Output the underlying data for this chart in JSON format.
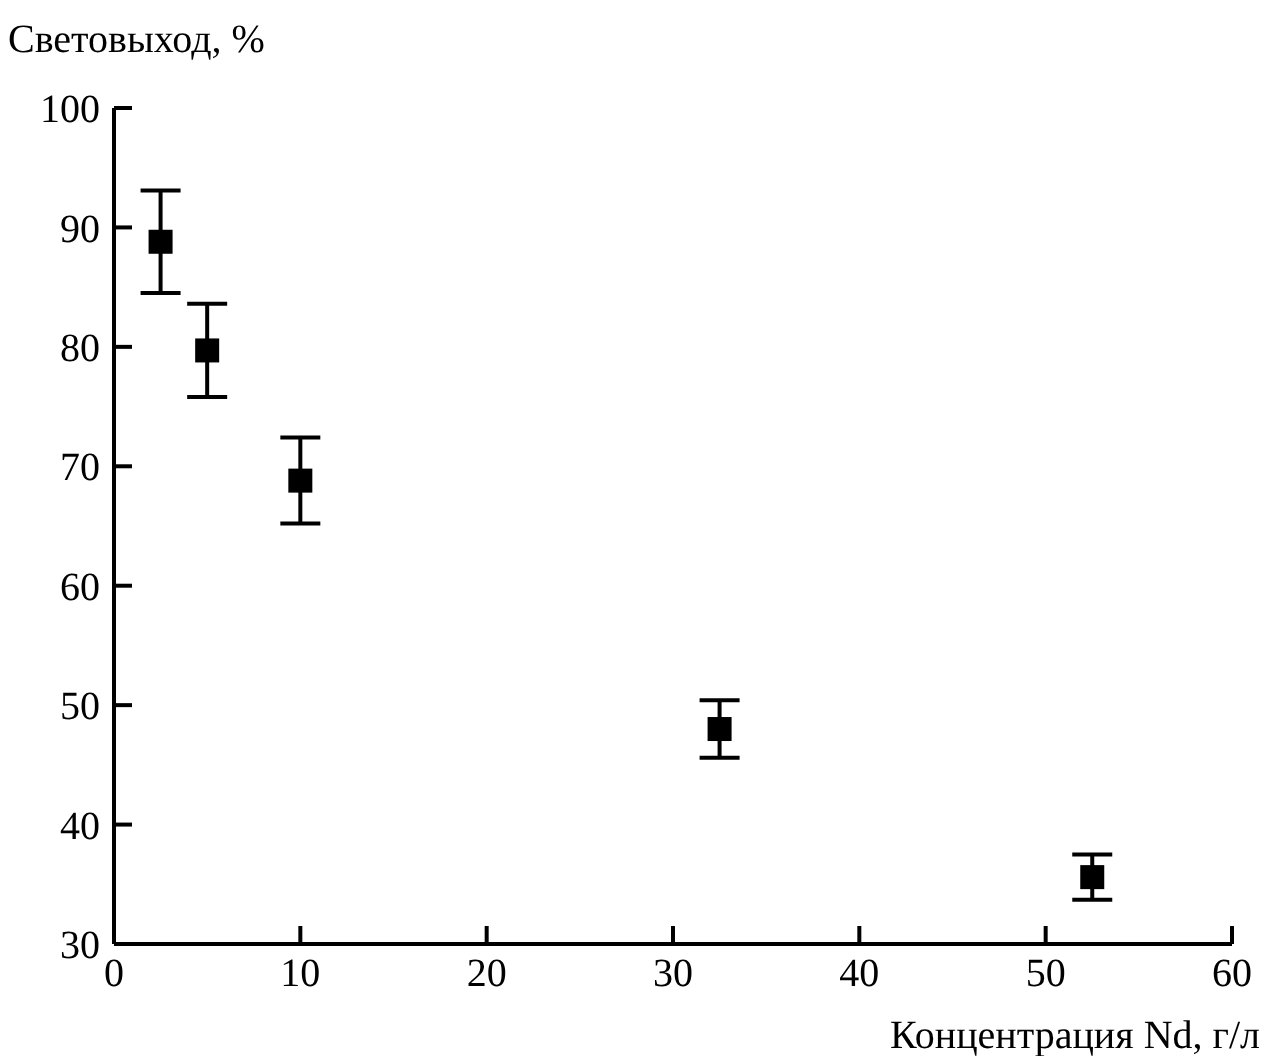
{
  "chart_data": {
    "type": "scatter",
    "xlabel": "Концентрация Nd, г/л",
    "ylabel": "Световыход, %",
    "x": [
      2.5,
      5,
      10,
      32.5,
      52.5
    ],
    "series": [
      {
        "color": "#000000",
        "values": [
          88.8,
          79.7,
          68.8,
          48.0,
          35.6
        ],
        "errors": [
          4.3,
          3.9,
          3.6,
          2.4,
          1.9
        ]
      }
    ],
    "xlim": [
      0,
      60
    ],
    "xticks": [
      0,
      10,
      20,
      30,
      40,
      50,
      60
    ],
    "ylim": [
      30,
      100
    ],
    "yticks": [
      30,
      40,
      50,
      60,
      70,
      80,
      90,
      100
    ],
    "marker": "square",
    "grid": false,
    "legend": false
  }
}
